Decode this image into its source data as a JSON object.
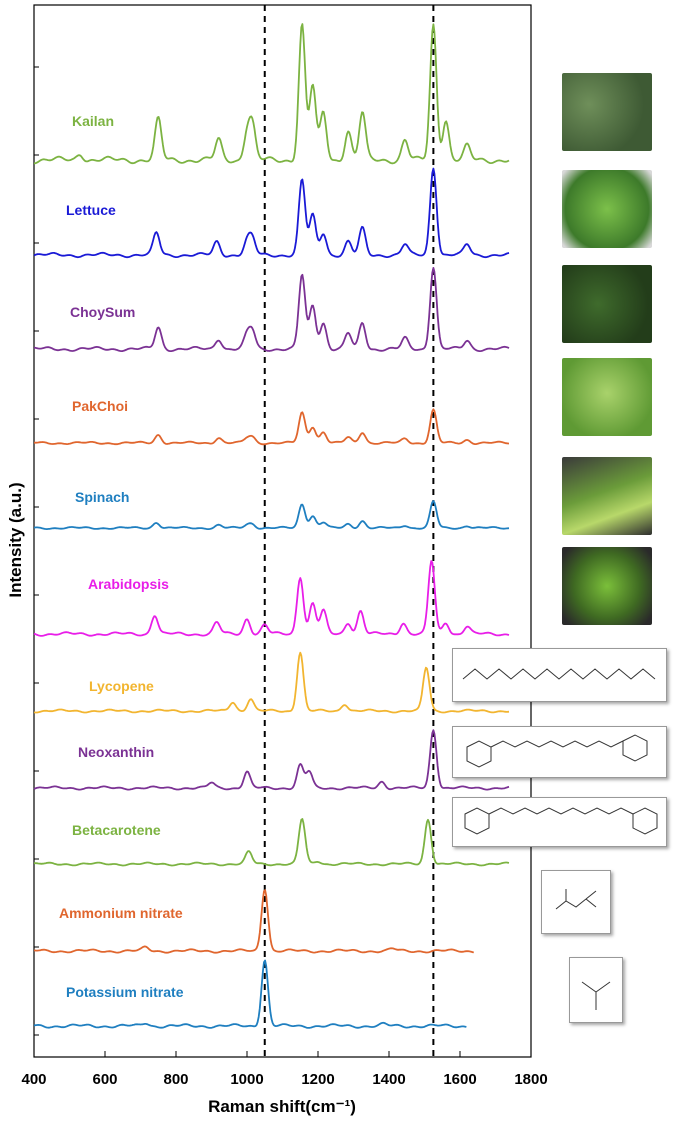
{
  "chart_data": {
    "type": "line",
    "title": "",
    "xlabel": "Raman shift(cm⁻¹)",
    "ylabel": "Intensity (a.u.)",
    "xlim": [
      400,
      1800
    ],
    "x_ticks": [
      "400",
      "600",
      "800",
      "1000",
      "1200",
      "1400",
      "1600",
      "1800"
    ],
    "reference_lines_x": [
      1050,
      1525
    ],
    "series": [
      {
        "name": "Kailan",
        "color": "#7cb342",
        "x_end": 1740,
        "peaks": [
          [
            530,
            0.05
          ],
          [
            750,
            0.3
          ],
          [
            920,
            0.15
          ],
          [
            1000,
            0.2
          ],
          [
            1015,
            0.25
          ],
          [
            1155,
            1.0
          ],
          [
            1185,
            0.55
          ],
          [
            1215,
            0.35
          ],
          [
            1285,
            0.22
          ],
          [
            1325,
            0.35
          ],
          [
            1445,
            0.15
          ],
          [
            1525,
            1.0
          ],
          [
            1560,
            0.3
          ],
          [
            1620,
            0.1
          ]
        ]
      },
      {
        "name": "Lettuce",
        "color": "#1a1ad6",
        "x_end": 1740,
        "peaks": [
          [
            745,
            0.25
          ],
          [
            915,
            0.15
          ],
          [
            1000,
            0.15
          ],
          [
            1015,
            0.18
          ],
          [
            1155,
            0.85
          ],
          [
            1185,
            0.45
          ],
          [
            1215,
            0.25
          ],
          [
            1285,
            0.15
          ],
          [
            1325,
            0.3
          ],
          [
            1445,
            0.12
          ],
          [
            1525,
            1.0
          ],
          [
            1620,
            0.12
          ]
        ]
      },
      {
        "name": "ChoySum",
        "color": "#7b3294",
        "x_end": 1740,
        "peaks": [
          [
            750,
            0.25
          ],
          [
            920,
            0.12
          ],
          [
            1000,
            0.15
          ],
          [
            1015,
            0.2
          ],
          [
            1155,
            0.85
          ],
          [
            1185,
            0.5
          ],
          [
            1215,
            0.3
          ],
          [
            1285,
            0.18
          ],
          [
            1325,
            0.3
          ],
          [
            1445,
            0.12
          ],
          [
            1525,
            0.95
          ],
          [
            1620,
            0.1
          ]
        ]
      },
      {
        "name": "PakChoi",
        "color": "#e0662e",
        "x_end": 1740,
        "peaks": [
          [
            750,
            0.15
          ],
          [
            920,
            0.1
          ],
          [
            1000,
            0.08
          ],
          [
            1015,
            0.1
          ],
          [
            1155,
            0.55
          ],
          [
            1185,
            0.3
          ],
          [
            1215,
            0.2
          ],
          [
            1285,
            0.1
          ],
          [
            1325,
            0.2
          ],
          [
            1445,
            0.08
          ],
          [
            1525,
            0.6
          ],
          [
            1620,
            0.06
          ]
        ]
      },
      {
        "name": "Spinach",
        "color": "#1f7fc0",
        "x_end": 1740,
        "peaks": [
          [
            745,
            0.12
          ],
          [
            920,
            0.06
          ],
          [
            1000,
            0.06
          ],
          [
            1015,
            0.08
          ],
          [
            1155,
            0.5
          ],
          [
            1185,
            0.25
          ],
          [
            1215,
            0.12
          ],
          [
            1285,
            0.08
          ],
          [
            1325,
            0.15
          ],
          [
            1445,
            0.06
          ],
          [
            1525,
            0.55
          ],
          [
            1620,
            0.05
          ]
        ]
      },
      {
        "name": "Arabidopsis",
        "color": "#e81ee8",
        "x_end": 1740,
        "peaks": [
          [
            740,
            0.25
          ],
          [
            915,
            0.15
          ],
          [
            1000,
            0.2
          ],
          [
            1050,
            0.12
          ],
          [
            1150,
            0.75
          ],
          [
            1185,
            0.4
          ],
          [
            1215,
            0.3
          ],
          [
            1285,
            0.15
          ],
          [
            1320,
            0.3
          ],
          [
            1440,
            0.15
          ],
          [
            1520,
            0.95
          ],
          [
            1560,
            0.15
          ],
          [
            1620,
            0.1
          ]
        ]
      },
      {
        "name": "Lycopene",
        "color": "#f2b530",
        "x_end": 1740,
        "peaks": [
          [
            960,
            0.15
          ],
          [
            1010,
            0.2
          ],
          [
            1150,
            0.95
          ],
          [
            1275,
            0.12
          ],
          [
            1505,
            0.7
          ]
        ]
      },
      {
        "name": "Neoxanthin",
        "color": "#7b3294",
        "x_end": 1740,
        "peaks": [
          [
            900,
            0.08
          ],
          [
            1000,
            0.25
          ],
          [
            1150,
            0.35
          ],
          [
            1175,
            0.25
          ],
          [
            1380,
            0.1
          ],
          [
            1525,
            0.9
          ]
        ]
      },
      {
        "name": "Betacarotene",
        "color": "#7cb342",
        "x_end": 1740,
        "peaks": [
          [
            1005,
            0.2
          ],
          [
            1155,
            0.75
          ],
          [
            1200,
            0.05
          ],
          [
            1510,
            0.75
          ]
        ]
      },
      {
        "name": "Ammonium nitrate",
        "color": "#e0662e",
        "x_end": 1640,
        "peaks": [
          [
            715,
            0.05
          ],
          [
            1050,
            0.9
          ],
          [
            1410,
            0.03
          ]
        ]
      },
      {
        "name": "Potassium nitrate",
        "color": "#1f7fc0",
        "x_end": 1620,
        "peaks": [
          [
            715,
            0.04
          ],
          [
            1050,
            0.85
          ],
          [
            1385,
            0.02
          ]
        ]
      }
    ]
  }
}
